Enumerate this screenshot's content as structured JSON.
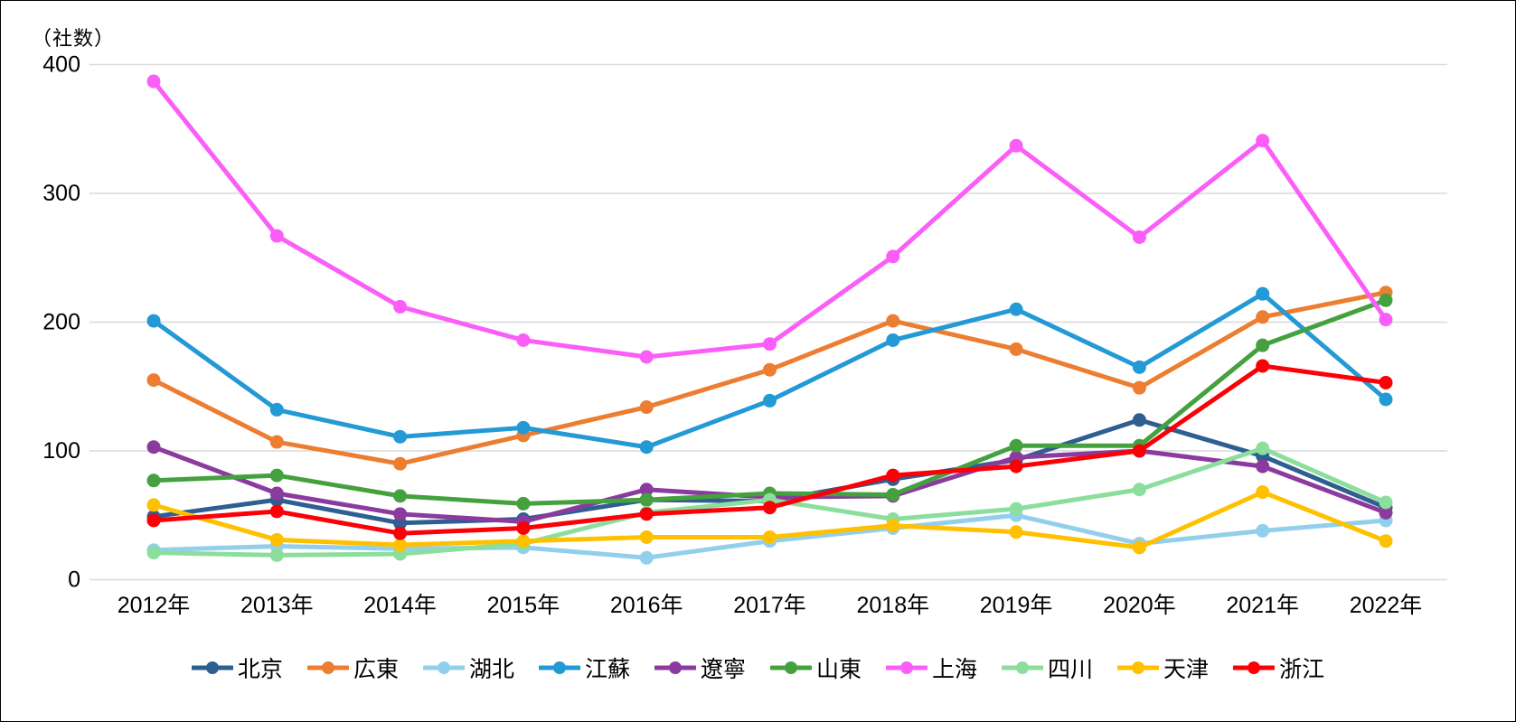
{
  "axis_unit_label": "（社数）",
  "chart_data": {
    "type": "line",
    "title": "",
    "ylabel": "（社数）",
    "xlabel": "",
    "categories": [
      "2012年",
      "2013年",
      "2014年",
      "2015年",
      "2016年",
      "2017年",
      "2018年",
      "2019年",
      "2020年",
      "2021年",
      "2022年"
    ],
    "ylim": [
      0,
      400
    ],
    "yticks": [
      0,
      100,
      200,
      300,
      400
    ],
    "grid": true,
    "legend_position": "bottom",
    "marker": "circle",
    "gridline_color": "#d9d9d9",
    "series": [
      {
        "name": "北京",
        "color": "#2f5e91",
        "values": [
          49,
          62,
          44,
          47,
          62,
          61,
          78,
          93,
          124,
          96,
          56
        ]
      },
      {
        "name": "広東",
        "color": "#ec7d31",
        "values": [
          155,
          107,
          90,
          112,
          134,
          163,
          201,
          179,
          149,
          204,
          223
        ]
      },
      {
        "name": "湖北",
        "color": "#92cfec",
        "values": [
          23,
          26,
          24,
          25,
          17,
          30,
          40,
          50,
          28,
          38,
          46
        ]
      },
      {
        "name": "江蘇",
        "color": "#2399d5",
        "values": [
          201,
          132,
          111,
          118,
          103,
          139,
          186,
          210,
          165,
          222,
          140
        ]
      },
      {
        "name": "遼寧",
        "color": "#8b3a9e",
        "values": [
          103,
          67,
          51,
          45,
          70,
          64,
          65,
          95,
          100,
          88,
          52
        ]
      },
      {
        "name": "山東",
        "color": "#44a13e",
        "values": [
          77,
          81,
          65,
          59,
          62,
          67,
          66,
          104,
          104,
          182,
          217
        ]
      },
      {
        "name": "上海",
        "color": "#fb5ef8",
        "values": [
          387,
          267,
          212,
          186,
          173,
          183,
          251,
          337,
          266,
          341,
          202
        ]
      },
      {
        "name": "四川",
        "color": "#8cde9c",
        "values": [
          21,
          19,
          20,
          28,
          52,
          62,
          47,
          55,
          70,
          102,
          60
        ]
      },
      {
        "name": "天津",
        "color": "#ffc000",
        "values": [
          58,
          31,
          27,
          30,
          33,
          33,
          42,
          37,
          25,
          68,
          30
        ]
      },
      {
        "name": "浙江",
        "color": "#fb0006",
        "values": [
          46,
          53,
          36,
          40,
          51,
          56,
          81,
          88,
          100,
          166,
          153
        ]
      }
    ]
  }
}
